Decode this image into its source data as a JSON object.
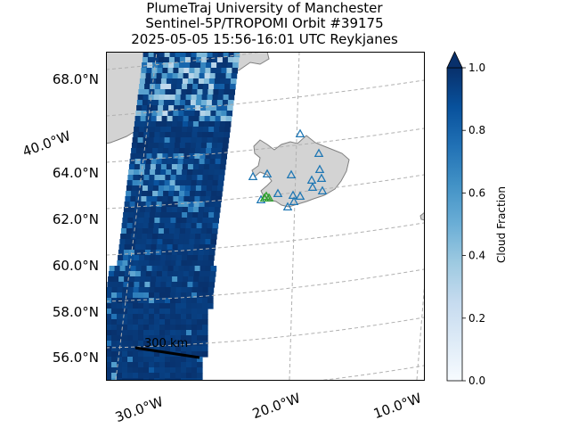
{
  "chart_data": {
    "type": "heatmap",
    "title_lines": [
      "PlumeTraj    University of Manchester",
      "Sentinel-5P/TROPOMI Orbit #39175",
      "2025-05-05   15:56-16:01 UTC   Reykjanes"
    ],
    "map": {
      "lat_ticks": [
        "68.0°N",
        "64.0°N",
        "62.0°N",
        "60.0°N",
        "58.0°N",
        "56.0°N"
      ],
      "lon_ticks": [
        "30.0°W",
        "20.0°W",
        "10.0°W"
      ],
      "left_lon_tick": "40.0°W",
      "gridlines": true,
      "scale_bar_label": "300 km",
      "land_color": "#d3d3d3",
      "coast_color": "#808080"
    },
    "colorbar": {
      "label": "Cloud Fraction",
      "ticks": [
        "0.0",
        "0.2",
        "0.4",
        "0.6",
        "0.8",
        "1.0"
      ],
      "range": [
        0,
        1
      ],
      "extend": "max",
      "cmap": "Blues"
    },
    "volcano_markers": {
      "marker": "triangle",
      "color": "#1f77b4",
      "highlight_color": "#2ca02c"
    }
  }
}
